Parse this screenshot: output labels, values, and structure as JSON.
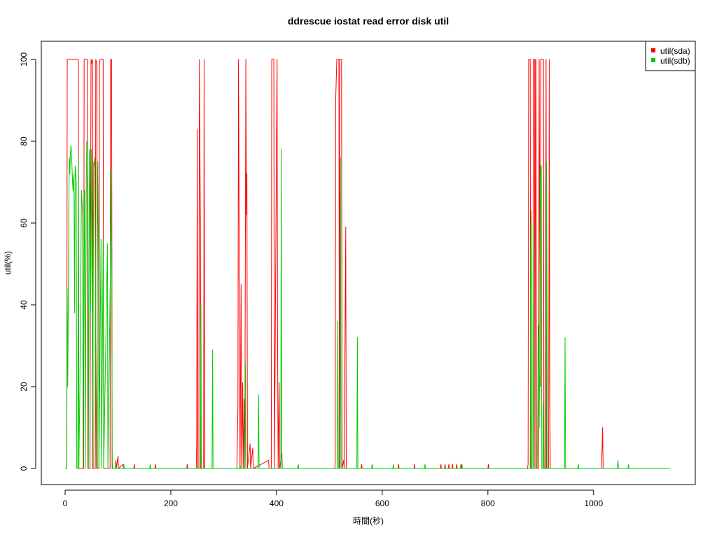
{
  "chart_data": {
    "type": "line",
    "title": "ddrescue iostat read error disk util",
    "xlabel": "時間(秒)",
    "ylabel": "util(%)",
    "xlim": [
      0,
      1150
    ],
    "ylim": [
      0,
      100
    ],
    "x_ticks": [
      0,
      200,
      400,
      600,
      800,
      1000
    ],
    "y_ticks": [
      0,
      20,
      40,
      60,
      80,
      100
    ],
    "grid": false,
    "legend_position": "top-right",
    "series": [
      {
        "name": "util(sda)",
        "color": "#ff0000",
        "points": [
          [
            0,
            0
          ],
          [
            3,
            0
          ],
          [
            4,
            100
          ],
          [
            25,
            100
          ],
          [
            26,
            0
          ],
          [
            35,
            0
          ],
          [
            36,
            100
          ],
          [
            42,
            100
          ],
          [
            43,
            0
          ],
          [
            47,
            0
          ],
          [
            49,
            100
          ],
          [
            50,
            99
          ],
          [
            52,
            100
          ],
          [
            53,
            0
          ],
          [
            57,
            0
          ],
          [
            58,
            100
          ],
          [
            60,
            99
          ],
          [
            61,
            0
          ],
          [
            64,
            0
          ],
          [
            65,
            99
          ],
          [
            66,
            100
          ],
          [
            72,
            100
          ],
          [
            73,
            0
          ],
          [
            85,
            0
          ],
          [
            86,
            100
          ],
          [
            88,
            100
          ],
          [
            89,
            0
          ],
          [
            95,
            0
          ],
          [
            96,
            2
          ],
          [
            97,
            0
          ],
          [
            100,
            3
          ],
          [
            101,
            0
          ],
          [
            110,
            1
          ],
          [
            111,
            0
          ],
          [
            130,
            0
          ],
          [
            131,
            1
          ],
          [
            132,
            0
          ],
          [
            170,
            0
          ],
          [
            171,
            1
          ],
          [
            172,
            0
          ],
          [
            230,
            0
          ],
          [
            231,
            1
          ],
          [
            232,
            0
          ],
          [
            248,
            0
          ],
          [
            249,
            6
          ],
          [
            250,
            83
          ],
          [
            251,
            0
          ],
          [
            253,
            0
          ],
          [
            254,
            100
          ],
          [
            256,
            60
          ],
          [
            257,
            0
          ],
          [
            262,
            0
          ],
          [
            263,
            100
          ],
          [
            264,
            0
          ],
          [
            325,
            0
          ],
          [
            327,
            15
          ],
          [
            328,
            100
          ],
          [
            330,
            34
          ],
          [
            331,
            0
          ],
          [
            333,
            45
          ],
          [
            334,
            0
          ],
          [
            336,
            21
          ],
          [
            337,
            0
          ],
          [
            339,
            17
          ],
          [
            340,
            0
          ],
          [
            342,
            100
          ],
          [
            343,
            62
          ],
          [
            344,
            72
          ],
          [
            345,
            0
          ],
          [
            350,
            6
          ],
          [
            351,
            0
          ],
          [
            355,
            5
          ],
          [
            356,
            0
          ],
          [
            385,
            2
          ],
          [
            386,
            0
          ],
          [
            390,
            0
          ],
          [
            391,
            100
          ],
          [
            395,
            100
          ],
          [
            396,
            0
          ],
          [
            401,
            100
          ],
          [
            402,
            33
          ],
          [
            403,
            0
          ],
          [
            405,
            21
          ],
          [
            406,
            0
          ],
          [
            410,
            4
          ],
          [
            411,
            0
          ],
          [
            440,
            0
          ],
          [
            441,
            1
          ],
          [
            442,
            0
          ],
          [
            510,
            0
          ],
          [
            511,
            1
          ],
          [
            512,
            90
          ],
          [
            514,
            100
          ],
          [
            518,
            100
          ],
          [
            519,
            0
          ],
          [
            520,
            100
          ],
          [
            523,
            100
          ],
          [
            524,
            0
          ],
          [
            527,
            2
          ],
          [
            528,
            0
          ],
          [
            531,
            59
          ],
          [
            532,
            0
          ],
          [
            560,
            0
          ],
          [
            561,
            1
          ],
          [
            562,
            0
          ],
          [
            580,
            0
          ],
          [
            581,
            1
          ],
          [
            582,
            0
          ],
          [
            630,
            0
          ],
          [
            631,
            1
          ],
          [
            632,
            0
          ],
          [
            660,
            0
          ],
          [
            661,
            1
          ],
          [
            662,
            0
          ],
          [
            710,
            0
          ],
          [
            711,
            1
          ],
          [
            712,
            0
          ],
          [
            718,
            0
          ],
          [
            719,
            1
          ],
          [
            720,
            0
          ],
          [
            725,
            0
          ],
          [
            726,
            1
          ],
          [
            727,
            0
          ],
          [
            732,
            0
          ],
          [
            733,
            1
          ],
          [
            734,
            0
          ],
          [
            740,
            0
          ],
          [
            741,
            1
          ],
          [
            742,
            0
          ],
          [
            748,
            0
          ],
          [
            749,
            1
          ],
          [
            750,
            0
          ],
          [
            800,
            0
          ],
          [
            801,
            1
          ],
          [
            802,
            0
          ],
          [
            875,
            0
          ],
          [
            876,
            1
          ],
          [
            877,
            100
          ],
          [
            880,
            100
          ],
          [
            881,
            0
          ],
          [
            885,
            0
          ],
          [
            886,
            100
          ],
          [
            888,
            100
          ],
          [
            889,
            0
          ],
          [
            890,
            100
          ],
          [
            891,
            100
          ],
          [
            892,
            0
          ],
          [
            896,
            0
          ],
          [
            897,
            100
          ],
          [
            899,
            20
          ],
          [
            900,
            100
          ],
          [
            905,
            100
          ],
          [
            906,
            0
          ],
          [
            908,
            0
          ],
          [
            909,
            30
          ],
          [
            910,
            100
          ],
          [
            911,
            0
          ],
          [
            915,
            0
          ],
          [
            916,
            100
          ],
          [
            917,
            20
          ],
          [
            918,
            0
          ],
          [
            1015,
            0
          ],
          [
            1017,
            10
          ],
          [
            1018,
            0
          ],
          [
            1145,
            0
          ]
        ]
      },
      {
        "name": "util(sdb)",
        "color": "#00cc00",
        "points": [
          [
            0,
            0
          ],
          [
            3,
            0
          ],
          [
            4,
            44
          ],
          [
            5,
            20
          ],
          [
            6,
            40
          ],
          [
            7,
            64
          ],
          [
            8,
            76
          ],
          [
            9,
            72
          ],
          [
            10,
            77
          ],
          [
            11,
            79
          ],
          [
            12,
            77
          ],
          [
            13,
            74
          ],
          [
            14,
            70
          ],
          [
            15,
            68
          ],
          [
            16,
            72
          ],
          [
            17,
            66
          ],
          [
            18,
            38
          ],
          [
            19,
            74
          ],
          [
            20,
            72
          ],
          [
            21,
            70
          ],
          [
            22,
            0
          ],
          [
            24,
            0
          ],
          [
            25,
            76
          ],
          [
            26,
            0
          ],
          [
            28,
            20
          ],
          [
            29,
            40
          ],
          [
            30,
            52
          ],
          [
            31,
            68
          ],
          [
            32,
            65
          ],
          [
            33,
            62
          ],
          [
            34,
            0
          ],
          [
            36,
            60
          ],
          [
            37,
            68
          ],
          [
            38,
            0
          ],
          [
            40,
            69
          ],
          [
            41,
            80
          ],
          [
            42,
            78
          ],
          [
            43,
            70
          ],
          [
            44,
            0
          ],
          [
            46,
            78
          ],
          [
            47,
            64
          ],
          [
            48,
            38
          ],
          [
            49,
            50
          ],
          [
            50,
            78
          ],
          [
            51,
            60
          ],
          [
            52,
            0
          ],
          [
            54,
            75
          ],
          [
            55,
            74
          ],
          [
            56,
            76
          ],
          [
            57,
            55
          ],
          [
            58,
            20
          ],
          [
            59,
            0
          ],
          [
            62,
            75
          ],
          [
            63,
            56
          ],
          [
            64,
            0
          ],
          [
            68,
            56
          ],
          [
            69,
            0
          ],
          [
            72,
            56
          ],
          [
            73,
            0
          ],
          [
            80,
            55
          ],
          [
            81,
            0
          ],
          [
            88,
            73
          ],
          [
            89,
            2
          ],
          [
            90,
            0
          ],
          [
            95,
            0
          ],
          [
            96,
            1
          ],
          [
            97,
            0
          ],
          [
            110,
            0
          ],
          [
            111,
            1
          ],
          [
            112,
            0
          ],
          [
            160,
            0
          ],
          [
            161,
            1
          ],
          [
            162,
            0
          ],
          [
            256,
            0
          ],
          [
            257,
            40
          ],
          [
            258,
            0
          ],
          [
            278,
            0
          ],
          [
            279,
            29
          ],
          [
            280,
            0
          ],
          [
            330,
            0
          ],
          [
            331,
            1
          ],
          [
            332,
            0
          ],
          [
            340,
            0
          ],
          [
            341,
            26
          ],
          [
            342,
            0
          ],
          [
            365,
            0
          ],
          [
            366,
            18
          ],
          [
            367,
            0
          ],
          [
            408,
            0
          ],
          [
            409,
            78
          ],
          [
            410,
            2
          ],
          [
            411,
            0
          ],
          [
            440,
            0
          ],
          [
            441,
            1
          ],
          [
            442,
            0
          ],
          [
            515,
            0
          ],
          [
            516,
            36
          ],
          [
            517,
            0
          ],
          [
            520,
            0
          ],
          [
            521,
            76
          ],
          [
            522,
            0
          ],
          [
            552,
            0
          ],
          [
            553,
            32
          ],
          [
            554,
            0
          ],
          [
            580,
            0
          ],
          [
            581,
            1
          ],
          [
            582,
            0
          ],
          [
            620,
            0
          ],
          [
            621,
            1
          ],
          [
            622,
            0
          ],
          [
            680,
            0
          ],
          [
            681,
            1
          ],
          [
            682,
            0
          ],
          [
            750,
            0
          ],
          [
            751,
            1
          ],
          [
            752,
            0
          ],
          [
            880,
            0
          ],
          [
            881,
            52
          ],
          [
            882,
            63
          ],
          [
            883,
            0
          ],
          [
            885,
            0
          ],
          [
            886,
            60
          ],
          [
            887,
            0
          ],
          [
            893,
            0
          ],
          [
            894,
            7
          ],
          [
            895,
            35
          ],
          [
            896,
            27
          ],
          [
            897,
            10
          ],
          [
            898,
            27
          ],
          [
            899,
            74
          ],
          [
            900,
            64
          ],
          [
            901,
            74
          ],
          [
            902,
            0
          ],
          [
            904,
            0
          ],
          [
            905,
            16
          ],
          [
            906,
            0
          ],
          [
            910,
            0
          ],
          [
            911,
            75
          ],
          [
            912,
            30
          ],
          [
            913,
            0
          ],
          [
            945,
            0
          ],
          [
            946,
            32
          ],
          [
            947,
            0
          ],
          [
            970,
            0
          ],
          [
            971,
            1
          ],
          [
            972,
            0
          ],
          [
            1045,
            0
          ],
          [
            1046,
            2
          ],
          [
            1047,
            0
          ],
          [
            1065,
            0
          ],
          [
            1066,
            1
          ],
          [
            1067,
            0
          ],
          [
            1145,
            0
          ]
        ]
      }
    ]
  }
}
